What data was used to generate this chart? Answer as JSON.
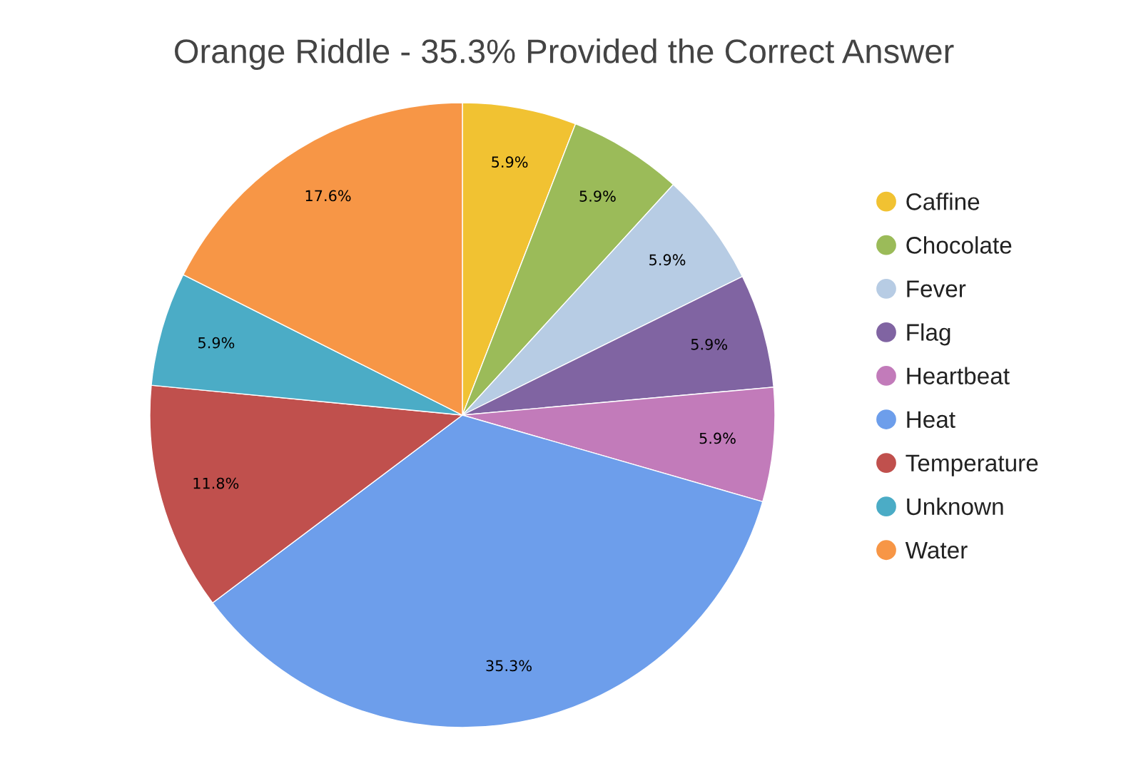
{
  "chart_data": {
    "type": "pie",
    "title": "Orange Riddle - 35.3% Provided the Correct Answer",
    "categories": [
      "Caffine",
      "Chocolate",
      "Fever",
      "Flag",
      "Heartbeat",
      "Heat",
      "Temperature",
      "Unknown",
      "Water"
    ],
    "values": [
      5.9,
      5.9,
      5.9,
      5.9,
      5.9,
      35.3,
      11.8,
      5.9,
      17.6
    ],
    "colors": [
      "#f1c232",
      "#9bbb59",
      "#b7cce4",
      "#8064a2",
      "#c27bba",
      "#6d9eeb",
      "#c0504d",
      "#4bacc6",
      "#f79646"
    ],
    "value_labels": [
      "5.9%",
      "5.9%",
      "5.9%",
      "5.9%",
      "5.9%",
      "35.3%",
      "11.8%",
      "5.9%",
      "17.6%"
    ],
    "legend": "right"
  }
}
